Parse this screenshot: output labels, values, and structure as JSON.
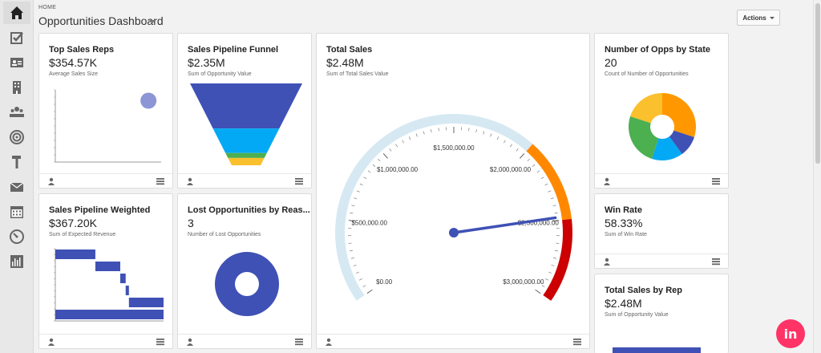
{
  "header": {
    "breadcrumb": "HOME",
    "title": "Opportunities Dashboard",
    "actions_label": "Actions"
  },
  "sidebar": {
    "items": [
      {
        "icon": "home-icon",
        "active": true
      },
      {
        "icon": "checkbox-icon"
      },
      {
        "icon": "contact-card-icon"
      },
      {
        "icon": "building-icon"
      },
      {
        "icon": "people-icon"
      },
      {
        "icon": "target-icon"
      },
      {
        "icon": "hammer-icon"
      },
      {
        "icon": "mail-icon"
      },
      {
        "icon": "calendar-icon"
      },
      {
        "icon": "gauge-icon"
      },
      {
        "icon": "bar-chart-icon"
      }
    ]
  },
  "cards": {
    "top_reps": {
      "title": "Top Sales Reps",
      "value": "$354.57K",
      "sub": "Average Sales Size"
    },
    "funnel": {
      "title": "Sales Pipeline Funnel",
      "value": "$2.35M",
      "sub": "Sum of Opportunity Value"
    },
    "total_sales": {
      "title": "Total Sales",
      "value": "$2.48M",
      "sub": "Sum of Total Sales Value"
    },
    "opps_by_state": {
      "title": "Number of Opps by State",
      "value": "20",
      "sub": "Count of Number of Opportunities"
    },
    "pipeline_weighted": {
      "title": "Sales Pipeline Weighted",
      "value": "$367.20K",
      "sub": "Sum of Expected Revenue"
    },
    "lost_opps": {
      "title": "Lost Opportunities by Reas...",
      "value": "3",
      "sub": "Number of Lost Opportunities"
    },
    "win_rate": {
      "title": "Win Rate",
      "value": "58.33%",
      "sub": "Sum of Win Rate"
    },
    "sales_by_rep": {
      "title": "Total Sales by Rep",
      "value": "$2.48M",
      "sub": "Sum of Opportunity Value"
    }
  },
  "chart_data": [
    {
      "type": "gauge",
      "min": 0,
      "max": 3000000,
      "value": 2480000,
      "tick_labels": [
        "$0.00",
        "$500,000.00",
        "$1,000,000.00",
        "$1,500,000.00",
        "$2,000,000.00",
        "$2,500,000.00",
        "$3,000,000.00"
      ],
      "bands": [
        {
          "from": 0,
          "to": 2000000,
          "color": "#d6e9f3"
        },
        {
          "from": 2000000,
          "to": 2500000,
          "color": "#ff8800"
        },
        {
          "from": 2500000,
          "to": 3000000,
          "color": "#cc0000"
        }
      ],
      "needle_color": "#3f51b5"
    },
    {
      "type": "funnel",
      "segments": [
        {
          "value": 0.55,
          "color": "#3f51b5"
        },
        {
          "value": 0.3,
          "color": "#03a9f4"
        },
        {
          "value": 0.06,
          "color": "#4caf50"
        },
        {
          "value": 0.09,
          "color": "#fbc02d"
        }
      ]
    },
    {
      "type": "pie",
      "slices": [
        {
          "value": 6,
          "color": "#ff9800"
        },
        {
          "value": 2,
          "color": "#3f51b5"
        },
        {
          "value": 3,
          "color": "#03a9f4"
        },
        {
          "value": 5,
          "color": "#4caf50"
        },
        {
          "value": 4,
          "color": "#fbc02d"
        }
      ]
    },
    {
      "type": "pie",
      "slices": [
        {
          "value": 3,
          "color": "#3f51b5"
        }
      ]
    },
    {
      "type": "scatter",
      "points": [
        {
          "x": 0.88,
          "y": 0.85,
          "color": "#8c96d6"
        }
      ]
    },
    {
      "type": "waterfall",
      "bars": [
        {
          "start": 0,
          "end": 0.37
        },
        {
          "start": 0.37,
          "end": 0.6
        },
        {
          "start": 0.6,
          "end": 0.65
        },
        {
          "start": 0.65,
          "end": 0.68
        },
        {
          "start": 0.68,
          "end": 1.0
        },
        {
          "start": 0,
          "end": 1.0
        }
      ],
      "color": "#3f51b5"
    },
    {
      "type": "bar",
      "color": "#3f51b5"
    }
  ]
}
